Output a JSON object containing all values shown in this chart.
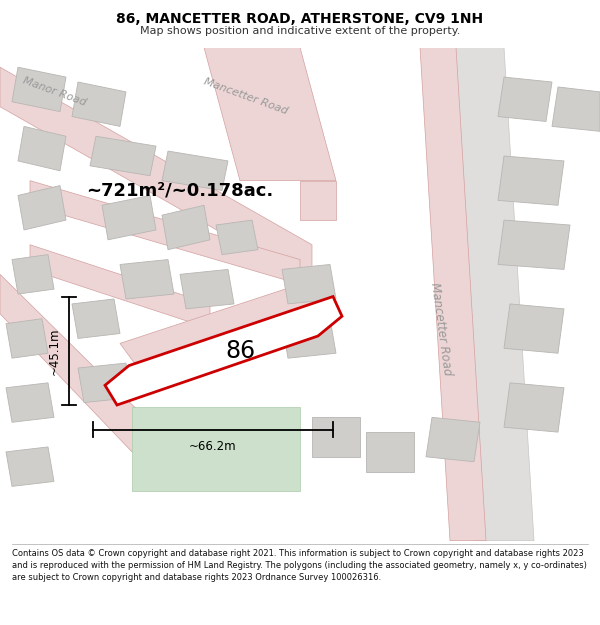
{
  "title": "86, MANCETTER ROAD, ATHERSTONE, CV9 1NH",
  "subtitle": "Map shows position and indicative extent of the property.",
  "footer": "Contains OS data © Crown copyright and database right 2021. This information is subject to Crown copyright and database rights 2023 and is reproduced with the permission of HM Land Registry. The polygons (including the associated geometry, namely x, y co-ordinates) are subject to Crown copyright and database rights 2023 Ordnance Survey 100026316.",
  "area_label": "~721m²/~0.178ac.",
  "label_86": "86",
  "dim_width": "~66.2m",
  "dim_height": "~45.1m",
  "road_label_mancetter_top": "Mancetter Road",
  "road_label_manor": "Manor Road",
  "road_label_mancetter_right": "Mancetter Road",
  "map_bg": "#f2f0ee",
  "road_fill": "#edd5d5",
  "road_ec": "#d4a0a0",
  "gray_road_fill": "#e0dedd",
  "gray_road_ec": "#c8c6c4",
  "building_fill": "#d0cecb",
  "building_stroke": "#b8b6b3",
  "highlight_fill": "#ffffff",
  "highlight_stroke": "#cc0000",
  "green_fill": "#cce0cc",
  "green_ec": "#aaccaa",
  "dim_color": "#111111",
  "road_text_color": "#999999"
}
